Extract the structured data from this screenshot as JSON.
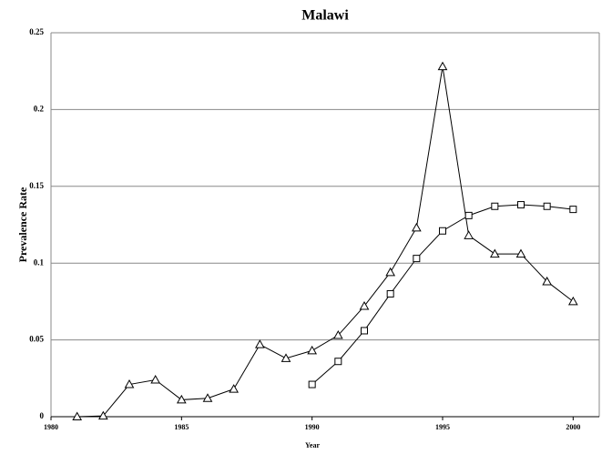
{
  "chart_data": {
    "type": "line",
    "title": "Malawi",
    "x_label": "Year",
    "y_label": "Prevalence Rate",
    "x": [
      1981,
      1982,
      1983,
      1984,
      1985,
      1986,
      1987,
      1988,
      1989,
      1990,
      1991,
      1992,
      1993,
      1994,
      1995,
      1996,
      1997,
      1998,
      1999,
      2000
    ],
    "series": [
      {
        "color": "#000000",
        "marker": "triangle",
        "values": [
          0,
          0.0005,
          0.021,
          0.024,
          0.011,
          0.012,
          0.018,
          0.047,
          0.038,
          0.043,
          0.053,
          0.072,
          0.094,
          0.123,
          0.228,
          0.118,
          0.106,
          0.106,
          0.088,
          0.075
        ]
      },
      {
        "color": "#000000",
        "marker": "square",
        "values": [
          null,
          null,
          null,
          null,
          null,
          null,
          null,
          null,
          null,
          0.021,
          0.036,
          0.056,
          0.08,
          0.103,
          0.121,
          0.131,
          0.137,
          0.138,
          0.137,
          0.135
        ]
      }
    ],
    "xlim": [
      1980,
      2001
    ],
    "xticks": [
      1980,
      1985,
      1990,
      1995,
      2000
    ],
    "ylim": [
      0,
      0.25
    ],
    "yticks": [
      0,
      0.05,
      0.1,
      0.15,
      0.2,
      0.25
    ],
    "grid": true
  }
}
